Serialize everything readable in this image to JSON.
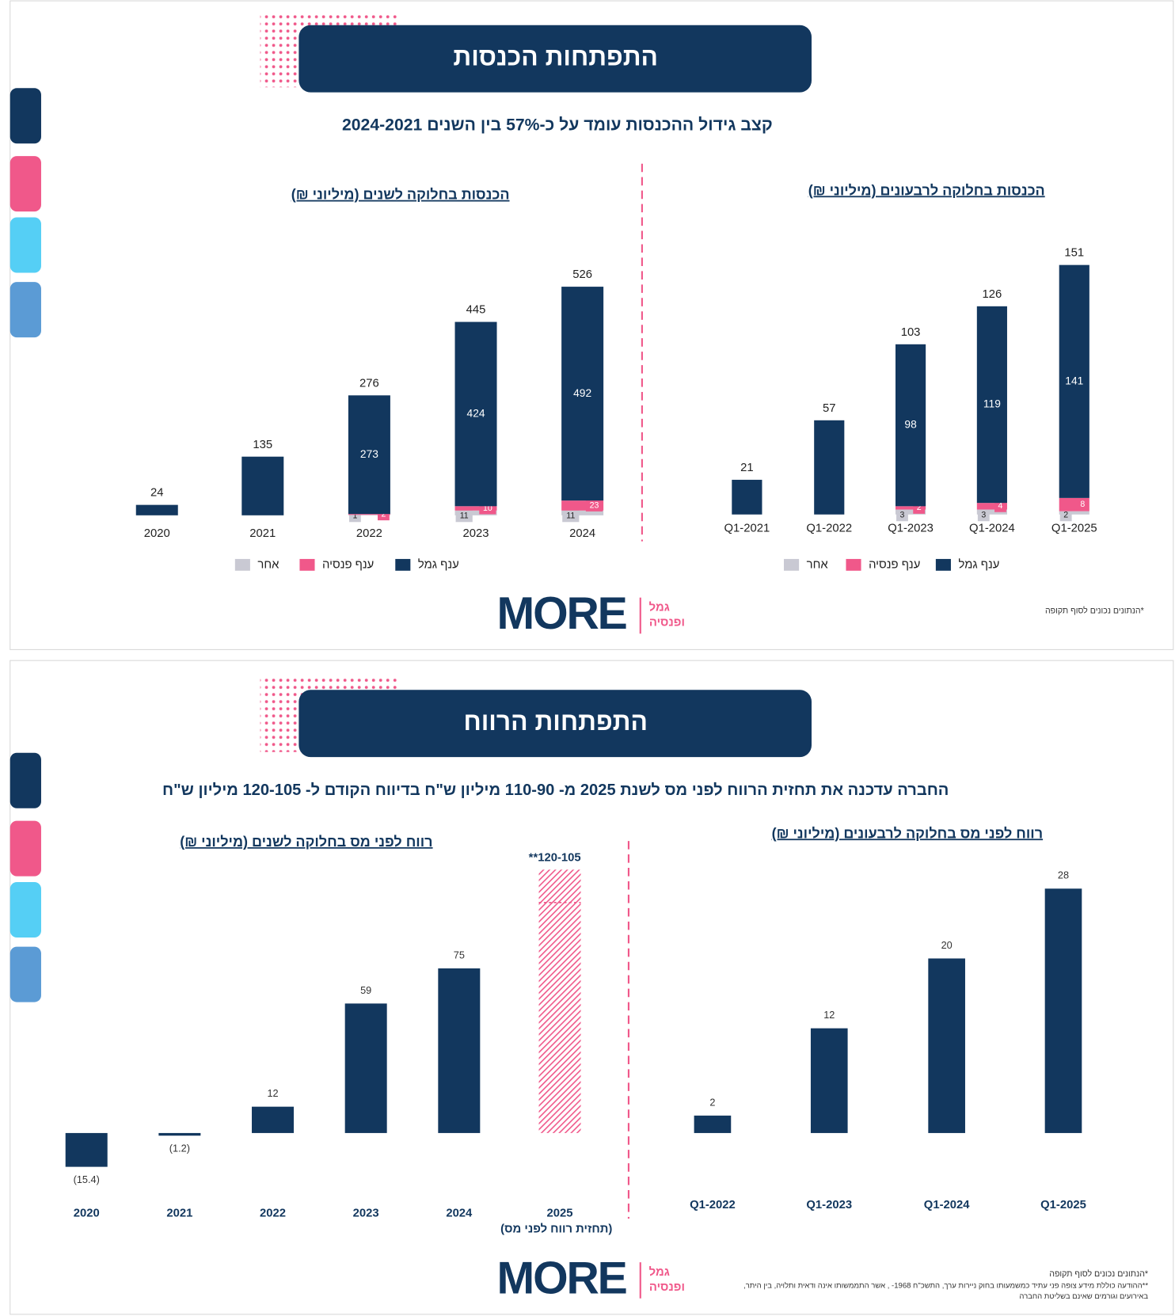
{
  "logo": {
    "name": "MORE",
    "line1": "גמל",
    "line2": "ופנסיה"
  },
  "slides": [
    {
      "title": "התפתחות הכנסות",
      "subtitle": "קצב גידול ההכנסות עומד על כ-57% בין השנים 2024-2021",
      "footnotes": [
        "*הנתונים נכונים לסוף תקופה"
      ]
    },
    {
      "title": "התפתחות הרווח",
      "subtitle": "החברה עדכנה את תחזית הרווח לפני מס לשנת 2025 מ- 110-90 מיליון ש\"ח בדיווח הקודם ל- 120-105 מיליון ש\"ח",
      "footnotes": [
        "*הנתונים נכונים לסוף תקופה",
        "**ההודעה כוללת מידע צופה פני עתיד כמשמעותו בחוק ניירות ערך, התשכ\"ח 1968- , אשר התממשותו אינה ודאית ותלויה, בין היתר,",
        "באירועים וגורמים שאינם בשליטת החברה"
      ]
    }
  ],
  "chart_data": [
    {
      "type": "bar",
      "stacked": true,
      "title": "הכנסות בחלוקה לשנים (מיליוני ₪)",
      "categories": [
        "2020",
        "2021",
        "2022",
        "2023",
        "2024"
      ],
      "series": [
        {
          "name": "ענף גמל",
          "color": "#12375e",
          "values": [
            24,
            135,
            273,
            424,
            492
          ]
        },
        {
          "name": "ענף פנסיה",
          "color": "#f0588a",
          "values": [
            null,
            null,
            2,
            10,
            23
          ]
        },
        {
          "name": "אחר",
          "color": "#c9c9d3",
          "values": [
            null,
            null,
            1,
            11,
            11
          ]
        }
      ],
      "totals": [
        24,
        135,
        276,
        445,
        526
      ],
      "ylim": [
        0,
        560
      ]
    },
    {
      "type": "bar",
      "stacked": true,
      "title": "הכנסות בחלוקה לרבעונים (מיליוני ₪)",
      "categories": [
        "Q1-2021",
        "Q1-2022",
        "Q1-2023",
        "Q1-2024",
        "Q1-2025"
      ],
      "series": [
        {
          "name": "ענף גמל",
          "color": "#12375e",
          "values": [
            21,
            57,
            98,
            119,
            141
          ]
        },
        {
          "name": "ענף פנסיה",
          "color": "#f0588a",
          "values": [
            null,
            null,
            2,
            4,
            8
          ]
        },
        {
          "name": "אחר",
          "color": "#c9c9d3",
          "values": [
            null,
            null,
            3,
            3,
            2
          ]
        }
      ],
      "totals": [
        21,
        57,
        103,
        126,
        151
      ],
      "ylim": [
        0,
        160
      ]
    },
    {
      "type": "bar",
      "title": "רווח לפני מס בחלוקה לשנים (מיליוני ₪)",
      "categories": [
        "2020",
        "2021",
        "2022",
        "2023",
        "2024",
        "2025"
      ],
      "values": [
        -15.4,
        -1.2,
        12,
        59,
        75,
        null
      ],
      "value_labels": [
        "(15.4)",
        "(1.2)",
        null,
        null,
        null,
        null
      ],
      "color": "#12375e",
      "forecast": {
        "low": 105,
        "high": 120,
        "label": "**120-105",
        "note": "(תחזית רווח לפני מס)",
        "color": "#f0588a"
      },
      "ylim": [
        -20,
        130
      ]
    },
    {
      "type": "bar",
      "title": "רווח לפני מס בחלוקה לרבעונים (מיליוני ₪)",
      "categories": [
        "Q1-2022",
        "Q1-2023",
        "Q1-2024",
        "Q1-2025"
      ],
      "values": [
        2,
        12,
        20,
        28
      ],
      "color": "#12375e",
      "ylim": [
        0,
        30
      ]
    }
  ]
}
